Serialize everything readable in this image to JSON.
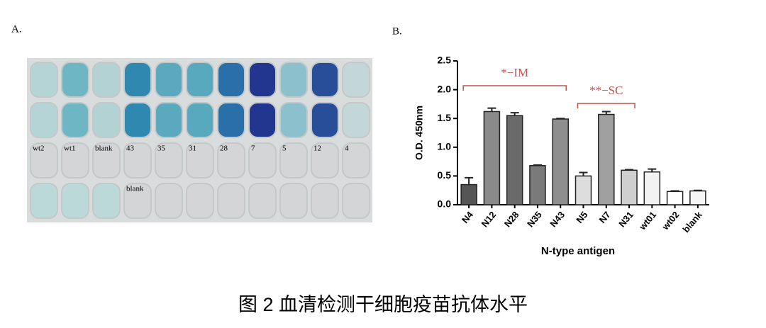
{
  "panel_a": {
    "label": "A.",
    "well_labels": [
      "wt2",
      "wt1",
      "blank",
      "43",
      "35",
      "31",
      "28",
      "7",
      "5",
      "12",
      "4"
    ],
    "row4_label": "blank"
  },
  "panel_b_label": "B.",
  "caption": "图 2 血清检测干细胞疫苗抗体水平",
  "chart_data": {
    "type": "bar",
    "x_label": "N-type antigen",
    "y_label": "O.D. 450nm",
    "categories": [
      "N4",
      "N12",
      "N28",
      "N35",
      "N43",
      "N5",
      "N7",
      "N31",
      "wt01",
      "wt02",
      "blank"
    ],
    "values": [
      0.35,
      1.62,
      1.55,
      0.68,
      1.49,
      0.5,
      1.57,
      0.6,
      0.57,
      0.23,
      0.24
    ],
    "errors": [
      0.12,
      0.06,
      0.05,
      0.01,
      0.01,
      0.06,
      0.05,
      0.01,
      0.05,
      0.01,
      0.01
    ],
    "colors": [
      "#555555",
      "#8a8a8a",
      "#6a6a6a",
      "#7a7a7a",
      "#8e8e8e",
      "#dddddd",
      "#a0a0a0",
      "#cfcfcf",
      "#f2f2f2",
      "#ffffff",
      "#f6f6f6"
    ],
    "ylim": [
      0,
      2.5
    ],
    "yticks": [
      {
        "value": 0,
        "label": "0.0"
      },
      0.5,
      {
        "value": 1,
        "label": "1.0"
      },
      1.5,
      {
        "value": 2,
        "label": "2.0"
      },
      2.5
    ],
    "annotations": [
      "*−IM",
      "**−SC"
    ],
    "annotation_color": "#c0504d"
  }
}
